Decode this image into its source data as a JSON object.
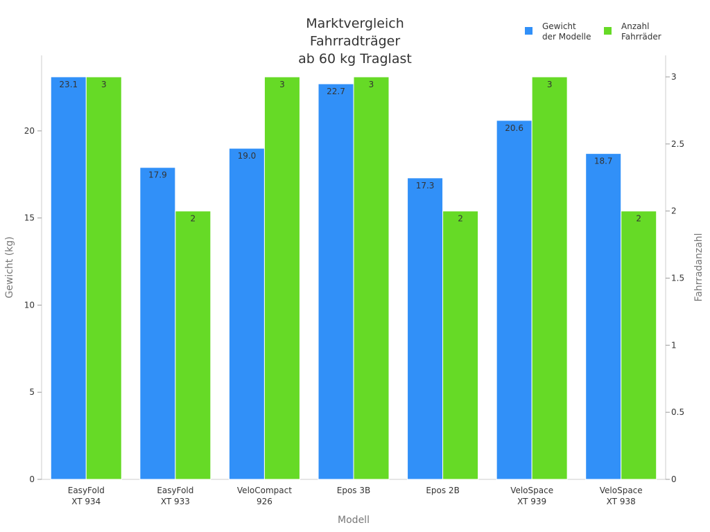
{
  "chart_data": {
    "type": "bar",
    "title": [
      "Marktvergleich",
      "Fahrradträger",
      "ab 60 kg Traglast"
    ],
    "xlabel": "Modell",
    "ylabel": "Gewicht (kg)",
    "y2label": "Fahrradanzahl",
    "categories": [
      [
        "EasyFold",
        "XT 934"
      ],
      [
        "EasyFold",
        "XT 933"
      ],
      [
        "VeloCompact",
        "926"
      ],
      [
        "Epos 3B"
      ],
      [
        "Epos 2B"
      ],
      [
        "VeloSpace",
        "XT 939"
      ],
      [
        "VeloSpace",
        "XT 938"
      ]
    ],
    "series": [
      {
        "name": [
          "Gewicht",
          "der Modelle"
        ],
        "axis": "left",
        "color": "#3190F8",
        "values": [
          23.1,
          17.9,
          19.0,
          22.7,
          17.3,
          20.6,
          18.7
        ],
        "labels": [
          "23.1",
          "17.9",
          "19.0",
          "22.7",
          "17.3",
          "20.6",
          "18.7"
        ]
      },
      {
        "name": [
          "Anzahl",
          "Fahrräder"
        ],
        "axis": "right",
        "color": "#66DA26",
        "values": [
          3,
          2,
          3,
          3,
          2,
          3,
          2
        ],
        "labels": [
          "3",
          "2",
          "3",
          "3",
          "2",
          "3",
          "2"
        ]
      }
    ],
    "ylim": [
      0,
      24.33
    ],
    "yticks": [
      0,
      5,
      10,
      15,
      20
    ],
    "ytick_labels": [
      "0",
      "5",
      "10",
      "15",
      "20"
    ],
    "y2lim": [
      0,
      3.16
    ],
    "y2ticks": [
      0,
      0.5,
      1,
      1.5,
      2,
      2.5,
      3
    ],
    "y2tick_labels": [
      "0",
      "0.5",
      "1",
      "1.5",
      "2",
      "2.5",
      "3"
    ],
    "grid": false,
    "legend_position": "top-right"
  }
}
